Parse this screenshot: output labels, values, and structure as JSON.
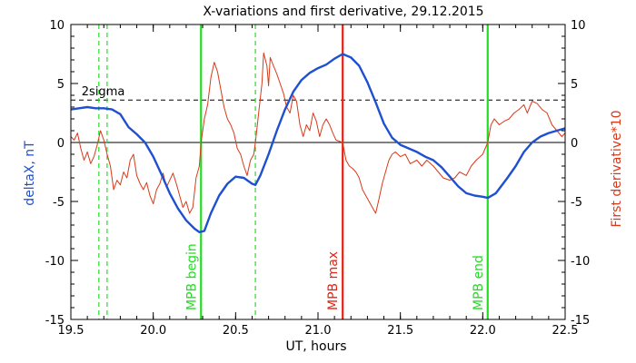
{
  "chart_data": {
    "type": "line",
    "title": "X-variations and first derivative, 29.12.2015",
    "xlabel": "UT, hours",
    "ylabel_left": "deltaX, nT",
    "ylabel_right": "First derivative*10",
    "xlim": [
      19.5,
      22.5
    ],
    "ylim": [
      -15,
      10
    ],
    "x_ticks": [
      19.5,
      20.0,
      20.5,
      21.0,
      21.5,
      22.0,
      22.5
    ],
    "x_tick_labels": [
      "19.5",
      "20.0",
      "20.5",
      "21.0",
      "21.5",
      "22.0",
      "22.5"
    ],
    "y_ticks": [
      10,
      5,
      0,
      -5,
      -10,
      -15
    ],
    "y_tick_labels": [
      "10",
      "5",
      "0",
      "-5",
      "-10",
      "-15"
    ],
    "colors": {
      "deltaX": "#1f50d0",
      "derivative": "#d83a1a",
      "mpb_green": "#22dd22",
      "mpb_max": "#e82010",
      "left_label": "#1f50d0",
      "right_label": "#d83a1a"
    },
    "threshold": {
      "label": "2sigma",
      "value": 3.6,
      "style": "dashed"
    },
    "zero_line": 0,
    "vertical_markers": [
      {
        "x": 20.29,
        "label": "MPB begin",
        "color": "#22dd22",
        "style": "solid"
      },
      {
        "x": 21.15,
        "label": "MPB max",
        "color": "#e82010",
        "style": "solid"
      },
      {
        "x": 22.03,
        "label": "MPB end",
        "color": "#22dd22",
        "style": "solid"
      },
      {
        "x": 19.67,
        "label": "",
        "color": "#22dd22",
        "style": "dashed"
      },
      {
        "x": 19.72,
        "label": "",
        "color": "#22dd22",
        "style": "dashed"
      },
      {
        "x": 20.62,
        "label": "",
        "color": "#22dd22",
        "style": "dashed"
      }
    ],
    "series": [
      {
        "name": "deltaX, nT",
        "color": "#1f50d0",
        "points": [
          [
            19.5,
            2.8
          ],
          [
            19.55,
            2.9
          ],
          [
            19.6,
            3.0
          ],
          [
            19.65,
            2.9
          ],
          [
            19.7,
            2.9
          ],
          [
            19.75,
            2.8
          ],
          [
            19.8,
            2.4
          ],
          [
            19.85,
            1.3
          ],
          [
            19.9,
            0.7
          ],
          [
            19.95,
            0.0
          ],
          [
            20.0,
            -1.2
          ],
          [
            20.05,
            -2.7
          ],
          [
            20.1,
            -4.3
          ],
          [
            20.15,
            -5.6
          ],
          [
            20.2,
            -6.6
          ],
          [
            20.25,
            -7.3
          ],
          [
            20.28,
            -7.6
          ],
          [
            20.31,
            -7.5
          ],
          [
            20.35,
            -6.0
          ],
          [
            20.4,
            -4.5
          ],
          [
            20.45,
            -3.5
          ],
          [
            20.5,
            -2.9
          ],
          [
            20.55,
            -3.0
          ],
          [
            20.6,
            -3.5
          ],
          [
            20.62,
            -3.6
          ],
          [
            20.65,
            -2.8
          ],
          [
            20.7,
            -1.0
          ],
          [
            20.75,
            1.0
          ],
          [
            20.8,
            2.8
          ],
          [
            20.85,
            4.3
          ],
          [
            20.9,
            5.3
          ],
          [
            20.95,
            5.9
          ],
          [
            21.0,
            6.3
          ],
          [
            21.05,
            6.6
          ],
          [
            21.1,
            7.1
          ],
          [
            21.15,
            7.5
          ],
          [
            21.2,
            7.2
          ],
          [
            21.25,
            6.5
          ],
          [
            21.3,
            5.1
          ],
          [
            21.35,
            3.4
          ],
          [
            21.4,
            1.6
          ],
          [
            21.45,
            0.4
          ],
          [
            21.5,
            -0.2
          ],
          [
            21.55,
            -0.5
          ],
          [
            21.6,
            -0.8
          ],
          [
            21.65,
            -1.2
          ],
          [
            21.7,
            -1.5
          ],
          [
            21.75,
            -2.1
          ],
          [
            21.8,
            -2.9
          ],
          [
            21.85,
            -3.7
          ],
          [
            21.9,
            -4.3
          ],
          [
            21.95,
            -4.5
          ],
          [
            22.0,
            -4.6
          ],
          [
            22.03,
            -4.7
          ],
          [
            22.08,
            -4.3
          ],
          [
            22.15,
            -3.0
          ],
          [
            22.2,
            -2.0
          ],
          [
            22.25,
            -0.8
          ],
          [
            22.3,
            0.0
          ],
          [
            22.35,
            0.5
          ],
          [
            22.4,
            0.8
          ],
          [
            22.45,
            1.0
          ],
          [
            22.5,
            1.2
          ]
        ]
      },
      {
        "name": "First derivative*10",
        "color": "#d83a1a",
        "points": [
          [
            19.5,
            0.5
          ],
          [
            19.52,
            0.2
          ],
          [
            19.54,
            0.8
          ],
          [
            19.56,
            -0.5
          ],
          [
            19.58,
            -1.5
          ],
          [
            19.6,
            -0.8
          ],
          [
            19.62,
            -1.8
          ],
          [
            19.64,
            -1.2
          ],
          [
            19.66,
            -0.2
          ],
          [
            19.68,
            1.0
          ],
          [
            19.7,
            0.2
          ],
          [
            19.72,
            -1.0
          ],
          [
            19.74,
            -2.0
          ],
          [
            19.76,
            -4.0
          ],
          [
            19.78,
            -3.2
          ],
          [
            19.8,
            -3.6
          ],
          [
            19.82,
            -2.5
          ],
          [
            19.84,
            -3.0
          ],
          [
            19.86,
            -1.5
          ],
          [
            19.88,
            -1.0
          ],
          [
            19.9,
            -2.8
          ],
          [
            19.92,
            -3.5
          ],
          [
            19.94,
            -4.0
          ],
          [
            19.96,
            -3.4
          ],
          [
            19.98,
            -4.5
          ],
          [
            20.0,
            -5.2
          ],
          [
            20.02,
            -4.0
          ],
          [
            20.04,
            -3.5
          ],
          [
            20.06,
            -2.6
          ],
          [
            20.08,
            -3.8
          ],
          [
            20.1,
            -3.2
          ],
          [
            20.12,
            -2.6
          ],
          [
            20.14,
            -3.5
          ],
          [
            20.16,
            -4.5
          ],
          [
            20.18,
            -5.5
          ],
          [
            20.2,
            -5.0
          ],
          [
            20.22,
            -6.0
          ],
          [
            20.24,
            -5.5
          ],
          [
            20.26,
            -3.0
          ],
          [
            20.28,
            -2.0
          ],
          [
            20.29,
            0.0
          ],
          [
            20.31,
            2.0
          ],
          [
            20.33,
            3.2
          ],
          [
            20.35,
            5.5
          ],
          [
            20.37,
            6.8
          ],
          [
            20.39,
            6.0
          ],
          [
            20.41,
            4.5
          ],
          [
            20.43,
            3.0
          ],
          [
            20.45,
            2.0
          ],
          [
            20.47,
            1.5
          ],
          [
            20.49,
            0.8
          ],
          [
            20.51,
            -0.5
          ],
          [
            20.53,
            -1.0
          ],
          [
            20.55,
            -2.0
          ],
          [
            20.57,
            -2.8
          ],
          [
            20.59,
            -1.5
          ],
          [
            20.61,
            -1.0
          ],
          [
            20.62,
            0.0
          ],
          [
            20.64,
            2.5
          ],
          [
            20.66,
            5.0
          ],
          [
            20.67,
            7.6
          ],
          [
            20.69,
            6.5
          ],
          [
            20.7,
            4.8
          ],
          [
            20.71,
            7.2
          ],
          [
            20.73,
            6.5
          ],
          [
            20.75,
            5.8
          ],
          [
            20.77,
            5.0
          ],
          [
            20.79,
            4.2
          ],
          [
            20.81,
            3.0
          ],
          [
            20.83,
            2.5
          ],
          [
            20.85,
            4.0
          ],
          [
            20.87,
            3.5
          ],
          [
            20.89,
            1.5
          ],
          [
            20.91,
            0.5
          ],
          [
            20.93,
            1.5
          ],
          [
            20.95,
            1.0
          ],
          [
            20.97,
            2.5
          ],
          [
            20.99,
            1.8
          ],
          [
            21.01,
            0.5
          ],
          [
            21.03,
            1.5
          ],
          [
            21.05,
            2.0
          ],
          [
            21.07,
            1.5
          ],
          [
            21.09,
            0.8
          ],
          [
            21.11,
            0.2
          ],
          [
            21.15,
            0.0
          ],
          [
            21.17,
            -1.5
          ],
          [
            21.19,
            -2.0
          ],
          [
            21.21,
            -2.2
          ],
          [
            21.23,
            -2.5
          ],
          [
            21.25,
            -3.0
          ],
          [
            21.27,
            -4.0
          ],
          [
            21.29,
            -4.5
          ],
          [
            21.31,
            -5.0
          ],
          [
            21.33,
            -5.5
          ],
          [
            21.35,
            -6.0
          ],
          [
            21.37,
            -4.8
          ],
          [
            21.39,
            -3.5
          ],
          [
            21.41,
            -2.5
          ],
          [
            21.43,
            -1.5
          ],
          [
            21.45,
            -1.0
          ],
          [
            21.47,
            -0.8
          ],
          [
            21.5,
            -1.2
          ],
          [
            21.53,
            -1.0
          ],
          [
            21.56,
            -1.8
          ],
          [
            21.6,
            -1.5
          ],
          [
            21.63,
            -2.0
          ],
          [
            21.66,
            -1.5
          ],
          [
            21.7,
            -2.0
          ],
          [
            21.73,
            -2.5
          ],
          [
            21.76,
            -3.0
          ],
          [
            21.8,
            -3.2
          ],
          [
            21.83,
            -3.0
          ],
          [
            21.86,
            -2.5
          ],
          [
            21.9,
            -2.8
          ],
          [
            21.93,
            -2.0
          ],
          [
            21.96,
            -1.5
          ],
          [
            22.0,
            -1.0
          ],
          [
            22.03,
            0.0
          ],
          [
            22.05,
            1.5
          ],
          [
            22.07,
            2.0
          ],
          [
            22.1,
            1.5
          ],
          [
            22.13,
            1.8
          ],
          [
            22.16,
            2.0
          ],
          [
            22.19,
            2.5
          ],
          [
            22.22,
            2.8
          ],
          [
            22.25,
            3.2
          ],
          [
            22.27,
            2.5
          ],
          [
            22.3,
            3.5
          ],
          [
            22.33,
            3.3
          ],
          [
            22.36,
            2.8
          ],
          [
            22.39,
            2.5
          ],
          [
            22.42,
            1.5
          ],
          [
            22.45,
            1.0
          ],
          [
            22.48,
            0.5
          ],
          [
            22.5,
            0.8
          ]
        ]
      }
    ]
  }
}
